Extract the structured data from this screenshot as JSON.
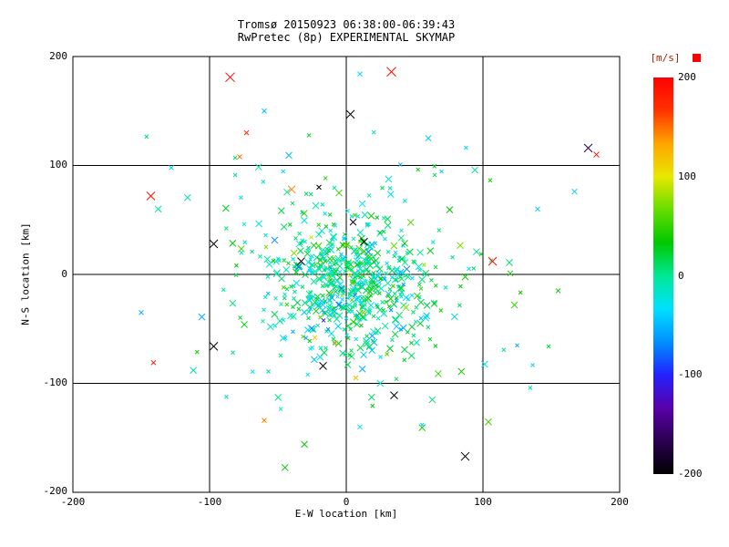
{
  "chart_data": {
    "type": "scatter",
    "title": "Tromsø 20150923 06:38:00-06:39:43",
    "subtitle": "RwPretec (8p) EXPERIMENTAL SKYMAP",
    "xlabel": "E-W location [km]",
    "ylabel": "N-S location [km]",
    "xlim": [
      -200,
      200
    ],
    "ylim": [
      -200,
      200
    ],
    "xticks": [
      -200,
      -100,
      0,
      100,
      200
    ],
    "yticks": [
      200,
      100,
      0,
      -100,
      -200
    ],
    "grid": true,
    "marker": "x",
    "colorbar": {
      "label": "[m/s]",
      "label_color": "#aa2200",
      "overflow_color": "#ff0000",
      "min": -200,
      "max": 200,
      "ticks": [
        200,
        100,
        0,
        -100,
        -200
      ],
      "stops": [
        "#000000",
        "#2a0050",
        "#5a00a8",
        "#2222ff",
        "#0090ff",
        "#00e0ff",
        "#00e896",
        "#00c800",
        "#66dd00",
        "#e8e800",
        "#ffa500",
        "#ff3300",
        "#ff0000"
      ]
    },
    "cluster": {
      "center": [
        3,
        -8
      ],
      "groups": [
        {
          "count": 520,
          "sx": 28,
          "sy": 30,
          "sizes": [
            2,
            3.5
          ]
        },
        {
          "count": 170,
          "sx": 62,
          "sy": 62,
          "sizes": [
            2,
            3.5
          ]
        }
      ],
      "velocity": {
        "mean": 0,
        "std": 30
      },
      "seed": 20150923
    },
    "outliers": [
      {
        "x": -85,
        "y": 181,
        "v": 196,
        "s": 5
      },
      {
        "x": 33,
        "y": 186,
        "v": 192,
        "s": 5
      },
      {
        "x": 10,
        "y": 184,
        "v": -35,
        "s": 2.5
      },
      {
        "x": 3,
        "y": 147,
        "v": -196,
        "s": 4.5
      },
      {
        "x": 183,
        "y": 110,
        "v": 190,
        "s": 3
      },
      {
        "x": 177,
        "y": 116,
        "v": -168,
        "s": 4.5
      },
      {
        "x": 167,
        "y": 76,
        "v": -40,
        "s": 3
      },
      {
        "x": -143,
        "y": 72,
        "v": 188,
        "s": 4.5
      },
      {
        "x": -40,
        "y": 78,
        "v": 142,
        "s": 4
      },
      {
        "x": -20,
        "y": 80,
        "v": -196,
        "s": 2.5
      },
      {
        "x": -73,
        "y": 130,
        "v": 176,
        "s": 2.5
      },
      {
        "x": -78,
        "y": 108,
        "v": 150,
        "s": 2.5
      },
      {
        "x": 107,
        "y": 12,
        "v": 192,
        "s": 4.5
      },
      {
        "x": -97,
        "y": 28,
        "v": -196,
        "s": 4.5
      },
      {
        "x": -33,
        "y": 12,
        "v": -194,
        "s": 4
      },
      {
        "x": 13,
        "y": 30,
        "v": -192,
        "s": 4
      },
      {
        "x": 5,
        "y": 48,
        "v": -188,
        "s": 3.5
      },
      {
        "x": -97,
        "y": -66,
        "v": -196,
        "s": 4.5
      },
      {
        "x": -141,
        "y": -81,
        "v": 190,
        "s": 2.5
      },
      {
        "x": -17,
        "y": -84,
        "v": -192,
        "s": 4
      },
      {
        "x": 35,
        "y": -111,
        "v": -196,
        "s": 4
      },
      {
        "x": 87,
        "y": -167,
        "v": -196,
        "s": 4.5
      },
      {
        "x": -23,
        "y": -58,
        "v": 116,
        "s": 2.5
      },
      {
        "x": -8,
        "y": -63,
        "v": 138,
        "s": 2.5
      },
      {
        "x": 7,
        "y": -95,
        "v": 120,
        "s": 2.5
      },
      {
        "x": 123,
        "y": -28,
        "v": 52,
        "s": 3.5
      },
      {
        "x": 120,
        "y": 1,
        "v": 46,
        "s": 3
      },
      {
        "x": 155,
        "y": -15,
        "v": 35,
        "s": 2.5
      },
      {
        "x": 60,
        "y": 125,
        "v": -42,
        "s": 3
      },
      {
        "x": -60,
        "y": 150,
        "v": -48,
        "s": 2.5
      },
      {
        "x": -128,
        "y": 98,
        "v": -40,
        "s": 2.5
      },
      {
        "x": -60,
        "y": -134,
        "v": 144,
        "s": 2.5
      },
      {
        "x": 10,
        "y": -140,
        "v": -38,
        "s": 2.5
      },
      {
        "x": -150,
        "y": -35,
        "v": -55,
        "s": 2.5
      },
      {
        "x": 140,
        "y": 60,
        "v": -45,
        "s": 2.5
      }
    ]
  }
}
